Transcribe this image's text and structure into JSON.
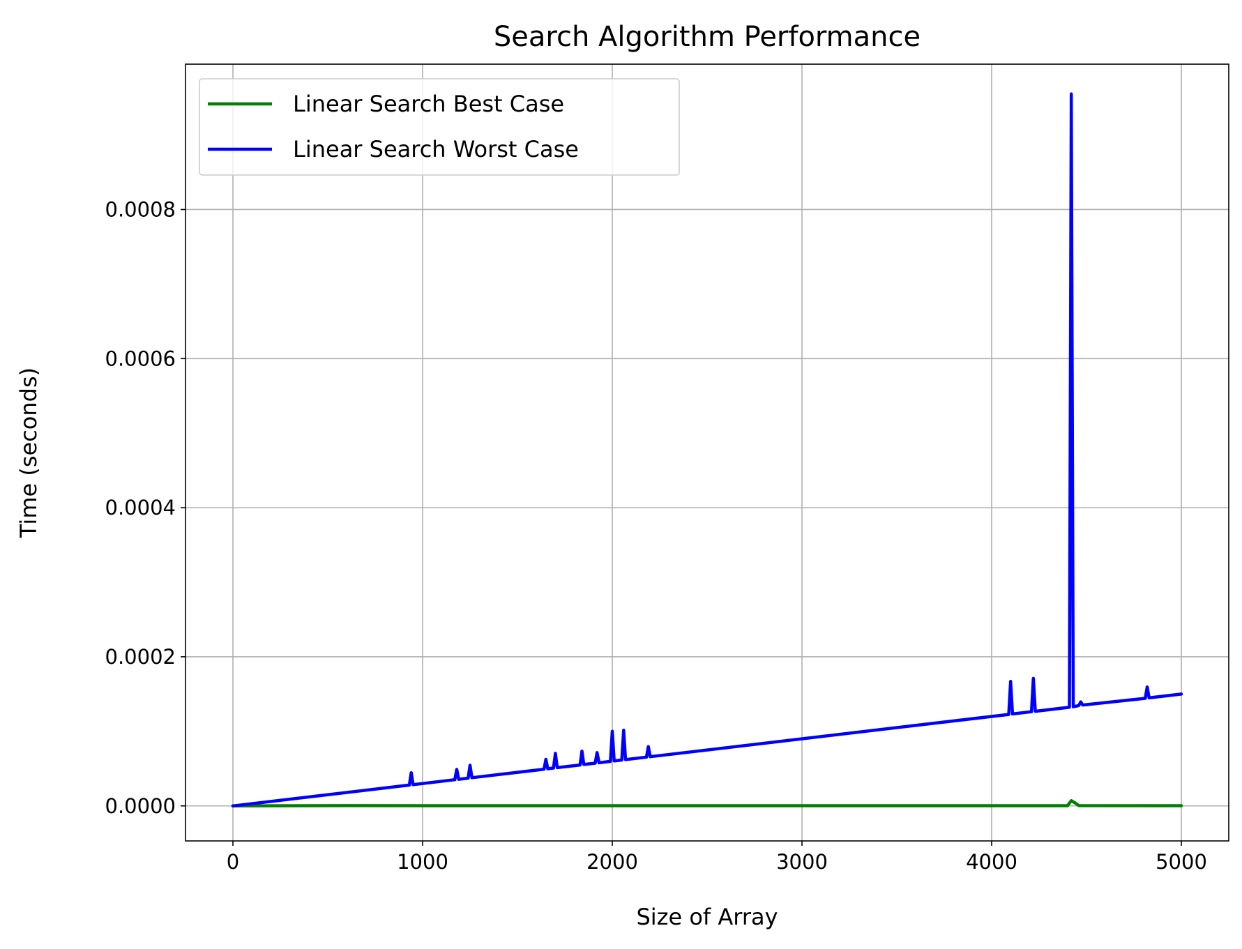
{
  "chart_data": {
    "type": "line",
    "title": "Search Algorithm Performance",
    "xlabel": "Size of Array",
    "ylabel": "Time (seconds)",
    "xlim": [
      -250,
      5250
    ],
    "ylim": [
      -4.7e-05,
      0.000995
    ],
    "x_ticks": [
      0,
      1000,
      2000,
      3000,
      4000,
      5000
    ],
    "x_tick_labels": [
      "0",
      "1000",
      "2000",
      "3000",
      "4000",
      "5000"
    ],
    "y_ticks": [
      0,
      0.0002,
      0.0004,
      0.0006,
      0.0008
    ],
    "y_tick_labels": [
      "0.0000",
      "0.0002",
      "0.0004",
      "0.0006",
      "0.0008"
    ],
    "grid": true,
    "legend_position": "top-left",
    "series": [
      {
        "name": "Linear Search Best Case",
        "color": "#008000",
        "x": [
          0,
          590,
          1000,
          2000,
          3000,
          4000,
          4400,
          4420,
          4440,
          4460,
          5000
        ],
        "y": [
          0,
          3e-07,
          2e-07,
          2e-07,
          2e-07,
          2e-07,
          2e-07,
          7e-06,
          4e-06,
          3e-07,
          2e-07
        ]
      },
      {
        "name": "Linear Search Worst Case",
        "color": "#0000ff",
        "x": [
          0,
          930,
          940,
          950,
          1170,
          1180,
          1190,
          1240,
          1250,
          1260,
          1640,
          1650,
          1660,
          1690,
          1700,
          1710,
          1830,
          1840,
          1850,
          1910,
          1920,
          1930,
          1990,
          2000,
          2010,
          2050,
          2060,
          2070,
          2180,
          2190,
          2200,
          4090,
          4100,
          4110,
          4210,
          4220,
          4230,
          4410,
          4420,
          4430,
          4440,
          4450,
          4460,
          4470,
          4480,
          4810,
          4820,
          4830,
          5000
        ],
        "y": [
          0,
          2.79e-05,
          4.45e-05,
          2.85e-05,
          3.51e-05,
          4.9e-05,
          3.57e-05,
          3.72e-05,
          5.45e-05,
          3.78e-05,
          4.92e-05,
          6.25e-05,
          4.98e-05,
          5.07e-05,
          7.05e-05,
          5.13e-05,
          5.49e-05,
          7.35e-05,
          5.55e-05,
          5.73e-05,
          7.15e-05,
          5.79e-05,
          5.97e-05,
          0.0001,
          6.03e-05,
          6.15e-05,
          0.0001015,
          6.21e-05,
          6.54e-05,
          7.95e-05,
          6.6e-05,
          0.0001227,
          0.000167,
          0.0001233,
          0.0001263,
          0.000171,
          0.0001269,
          0.0001323,
          0.000955,
          0.0001329,
          0.0001335,
          0.0001341,
          0.0001347,
          0.0001395,
          0.0001353,
          0.0001443,
          0.0001595,
          0.0001449,
          0.00015
        ]
      }
    ]
  }
}
